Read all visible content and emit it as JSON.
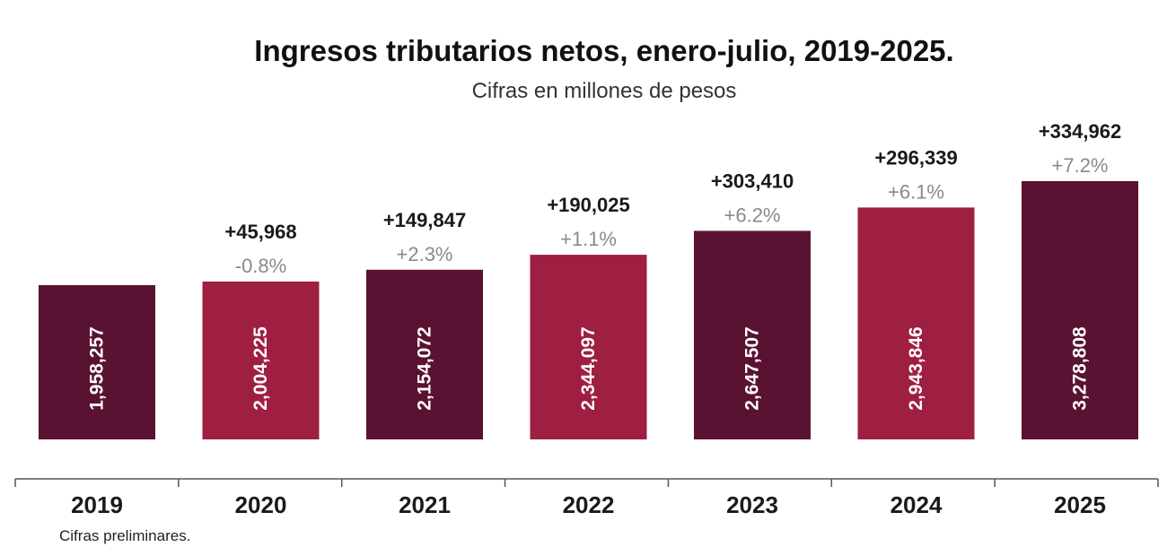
{
  "chart_data": {
    "type": "bar",
    "title": "Ingresos tributarios netos, enero-julio, 2019-2025.",
    "subtitle": "Cifras en millones de pesos",
    "categories": [
      "2019",
      "2020",
      "2021",
      "2022",
      "2023",
      "2024",
      "2025"
    ],
    "values": [
      1958257,
      2004225,
      2154072,
      2344097,
      2647507,
      2943846,
      3278808
    ],
    "value_labels": [
      "1,958,257",
      "2,004,225",
      "2,154,072",
      "2,344,097",
      "2,647,507",
      "2,943,846",
      "3,278,808"
    ],
    "abs_change_labels": [
      "",
      "+45,968",
      "+149,847",
      "+190,025",
      "+303,410",
      "+296,339",
      "+334,962"
    ],
    "pct_change_labels": [
      "",
      "-0.8%",
      "+2.3%",
      "+1.1%",
      "+6.2%",
      "+6.1%",
      "+7.2%"
    ],
    "bar_colors": [
      "#5a1232",
      "#9e1f42",
      "#5a1232",
      "#9e1f42",
      "#5a1232",
      "#9e1f42",
      "#5a1232"
    ],
    "axis_color": "#555555",
    "grid": false,
    "legend": "none"
  },
  "footnote": "Cifras preliminares."
}
